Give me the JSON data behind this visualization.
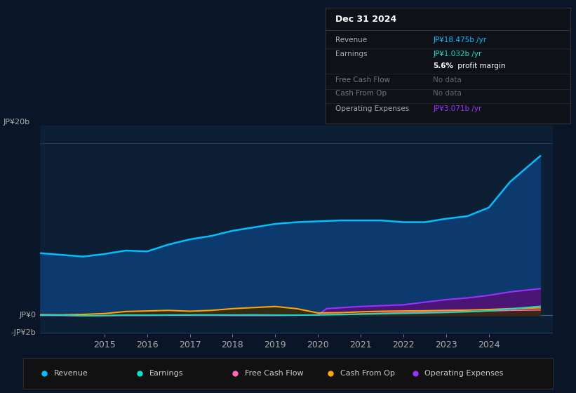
{
  "bg_color": "#0a1628",
  "plot_bg_color": "#0d1f35",
  "grid_color": "#1e3a5f",
  "y_label_top": "JP¥20b",
  "y_label_zero": "JP¥0",
  "y_label_neg": "-JP¥2b",
  "x_ticks": [
    2015,
    2016,
    2017,
    2018,
    2019,
    2020,
    2021,
    2022,
    2023,
    2024
  ],
  "ylim": [
    -2.2,
    22
  ],
  "xlim": [
    2013.5,
    2025.5
  ],
  "revenue_color": "#00bfff",
  "revenue_fill": "#0d3a6e",
  "earnings_color": "#00e5cc",
  "free_cash_color": "#ff69b4",
  "cash_from_op_color": "#ffa500",
  "op_exp_color": "#9b30ff",
  "op_exp_fill": "#4a1575",
  "cash_from_op_fill": "#3a2a00",
  "revenue_data_x": [
    2013.5,
    2014.0,
    2014.5,
    2015.0,
    2015.5,
    2016.0,
    2016.5,
    2017.0,
    2017.5,
    2018.0,
    2018.5,
    2019.0,
    2019.5,
    2020.0,
    2020.5,
    2021.0,
    2021.5,
    2022.0,
    2022.5,
    2023.0,
    2023.5,
    2024.0,
    2024.5,
    2025.2
  ],
  "revenue_data_y": [
    7.2,
    7.0,
    6.8,
    7.1,
    7.5,
    7.4,
    8.2,
    8.8,
    9.2,
    9.8,
    10.2,
    10.6,
    10.8,
    10.9,
    11.0,
    11.0,
    11.0,
    10.8,
    10.8,
    11.2,
    11.5,
    12.5,
    15.5,
    18.475
  ],
  "earnings_data_x": [
    2013.5,
    2014.0,
    2014.5,
    2015.0,
    2015.5,
    2016.0,
    2016.5,
    2017.0,
    2017.5,
    2018.0,
    2018.5,
    2019.0,
    2019.5,
    2020.0,
    2020.5,
    2021.0,
    2021.5,
    2022.0,
    2022.5,
    2023.0,
    2023.5,
    2024.0,
    2024.5,
    2025.2
  ],
  "earnings_data_y": [
    0.02,
    0.01,
    -0.08,
    -0.05,
    0.02,
    0.0,
    0.02,
    0.03,
    0.03,
    0.02,
    0.03,
    0.01,
    0.0,
    0.02,
    0.05,
    0.1,
    0.15,
    0.2,
    0.25,
    0.3,
    0.38,
    0.5,
    0.72,
    1.032
  ],
  "free_cash_data_x": [
    2013.5,
    2014.0,
    2014.5,
    2015.0,
    2015.5,
    2016.0,
    2016.5,
    2017.0,
    2017.5,
    2018.0,
    2018.5,
    2019.0,
    2019.5,
    2020.0,
    2020.5,
    2021.0,
    2021.5,
    2022.0,
    2022.5,
    2023.0,
    2023.5,
    2024.0,
    2024.5,
    2025.2
  ],
  "free_cash_data_y": [
    -0.03,
    -0.04,
    -0.08,
    -0.06,
    -0.04,
    -0.04,
    -0.02,
    -0.02,
    -0.02,
    -0.04,
    -0.04,
    -0.04,
    -0.02,
    0.04,
    0.08,
    0.15,
    0.22,
    0.28,
    0.32,
    0.38,
    0.43,
    0.48,
    0.55,
    0.6
  ],
  "cash_from_op_x": [
    2013.5,
    2014.0,
    2014.5,
    2015.0,
    2015.5,
    2016.0,
    2016.5,
    2017.0,
    2017.5,
    2018.0,
    2018.5,
    2019.0,
    2019.5,
    2020.0,
    2020.5,
    2021.0,
    2021.5,
    2022.0,
    2022.5,
    2023.0,
    2023.5,
    2024.0,
    2024.5,
    2025.2
  ],
  "cash_from_op_y": [
    0.05,
    0.03,
    0.08,
    0.18,
    0.42,
    0.48,
    0.55,
    0.45,
    0.55,
    0.75,
    0.88,
    1.0,
    0.75,
    0.25,
    0.28,
    0.38,
    0.45,
    0.48,
    0.5,
    0.55,
    0.58,
    0.65,
    0.75,
    0.85
  ],
  "op_exp_x": [
    2020.0,
    2020.2,
    2020.5,
    2021.0,
    2021.5,
    2022.0,
    2022.5,
    2023.0,
    2023.5,
    2024.0,
    2024.5,
    2025.2
  ],
  "op_exp_y": [
    0.0,
    0.75,
    0.85,
    1.0,
    1.1,
    1.2,
    1.5,
    1.8,
    2.0,
    2.3,
    2.7,
    3.071
  ],
  "info_box_title": "Dec 31 2024",
  "info_rows": [
    {
      "label": "Revenue",
      "value": "JP¥18.475b /yr",
      "value_color": "#00bfff",
      "dimmed": false
    },
    {
      "label": "Earnings",
      "value": "JP¥1.032b /yr",
      "value_color": "#00e5cc",
      "dimmed": false
    },
    {
      "label": "",
      "value": "5.6%",
      "value2": " profit margin",
      "value_color": "#ffffff",
      "dimmed": false,
      "bold": true
    },
    {
      "label": "Free Cash Flow",
      "value": "No data",
      "value_color": "#666666",
      "dimmed": true
    },
    {
      "label": "Cash From Op",
      "value": "No data",
      "value_color": "#666666",
      "dimmed": true
    },
    {
      "label": "Operating Expenses",
      "value": "JP¥3.071b /yr",
      "value_color": "#9b30ff",
      "dimmed": false
    }
  ],
  "legend": [
    {
      "label": "Revenue",
      "color": "#00bfff"
    },
    {
      "label": "Earnings",
      "color": "#00e5cc"
    },
    {
      "label": "Free Cash Flow",
      "color": "#ff69b4"
    },
    {
      "label": "Cash From Op",
      "color": "#ffa500"
    },
    {
      "label": "Operating Expenses",
      "color": "#9b30ff"
    }
  ]
}
